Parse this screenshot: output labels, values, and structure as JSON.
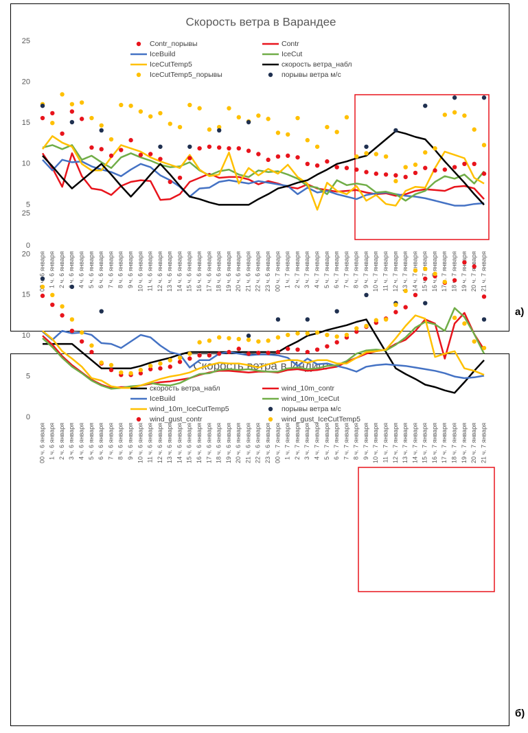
{
  "chart_data": [
    {
      "type": "line",
      "title": "Скорость ветра в Варандее",
      "panel_label": "а)",
      "categories": [
        "00 ч. 6 января",
        "1 ч. 6 января",
        "2 ч. 6 января",
        "3 ч. 6 января",
        "4 ч. 6 января",
        "5 ч. 6 января",
        "6 ч. 6 января",
        "7 ч. 6 января",
        "8 ч. 6 января",
        "9 ч. 6 января",
        "10 ч. 6 января",
        "11 ч. 6 января",
        "12 ч. 6 января",
        "13 ч. 6 января",
        "14 ч. 6 января",
        "15 ч. 6 января",
        "16 ч. 6 января",
        "17 ч. 6 января",
        "18 ч. 6 января",
        "19 ч. 6 января",
        "20 ч. 6 января",
        "21 ч. 6 января",
        "22 ч. 6 января",
        "23 ч. 6 января",
        "00 ч. 7 января",
        "1 ч. 7 января",
        "2 ч. 7 января",
        "3 ч. 7 января",
        "4 ч. 7 января",
        "5 ч. 7 января",
        "6 ч. 7 января",
        "7 ч. 7 января",
        "8 ч. 7 января",
        "9 ч. 7 января",
        "10 ч. 7 января",
        "11 ч. 7 января",
        "12 ч. 7 января",
        "13 ч. 7 января",
        "14 ч. 7 января",
        "15 ч. 7 января",
        "16 ч. 7 января",
        "17 ч. 7 января",
        "18 ч. 7 января",
        "19 ч. 7 января",
        "20 ч. 7 января",
        "21 ч. 7 января"
      ],
      "ylim": [
        0,
        25
      ],
      "yticks": [
        0,
        5,
        10,
        15,
        20,
        25
      ],
      "grid": false,
      "series": [
        {
          "name": "Contr_порывы",
          "color": "#e8141c",
          "mode": "markers",
          "values": [
            15.6,
            16.2,
            13.7,
            16.4,
            15.5,
            12,
            11.8,
            11,
            11.7,
            12.9,
            11.1,
            11.2,
            10.6,
            7.8,
            8.3,
            10.7,
            11.9,
            12.1,
            12,
            11.9,
            11.9,
            11.6,
            11.2,
            10.5,
            10.9,
            11,
            10.8,
            10,
            9.8,
            10.3,
            9.6,
            9.5,
            9.3,
            9,
            8.8,
            8.7,
            8.6,
            8.4,
            8.9,
            9.5,
            9.2,
            9.3,
            9.6,
            10,
            10,
            8.8
          ]
        },
        {
          "name": "Contr",
          "color": "#e8141c",
          "mode": "line",
          "values": [
            11.3,
            9.5,
            7.2,
            11.3,
            8.5,
            7,
            6.8,
            6.2,
            7.3,
            7.8,
            8,
            7.9,
            5.6,
            5.7,
            6.3,
            7.8,
            8.3,
            8.8,
            8.3,
            8.4,
            8.4,
            8.1,
            7.5,
            7.9,
            7.6,
            7.2,
            7,
            7.5,
            7,
            6.8,
            6.6,
            6.7,
            6.8,
            6.5,
            6.3,
            6.4,
            6.1,
            6.3,
            6.7,
            6.9,
            6.8,
            6.7,
            7.2,
            7.3,
            7,
            5.7
          ]
        },
        {
          "name": "IceBuild",
          "color": "#4472c4",
          "mode": "line",
          "values": [
            10.5,
            9.2,
            10.5,
            10.2,
            10.3,
            9.7,
            9.3,
            9,
            8.5,
            9.3,
            10,
            9.6,
            8.6,
            8,
            7.2,
            6,
            7,
            7.1,
            7.8,
            8,
            7.8,
            7.6,
            7.9,
            7.7,
            7.5,
            7.3,
            6.3,
            7.1,
            6.5,
            6.7,
            6.3,
            6,
            5.7,
            6.2,
            6.4,
            6.5,
            6.3,
            6.1,
            6,
            5.8,
            5.5,
            5.2,
            4.9,
            4.9,
            5.1,
            5.2
          ]
        },
        {
          "name": "IceCut",
          "color": "#70ad47",
          "mode": "line",
          "values": [
            12,
            12.3,
            11.8,
            12.3,
            10.5,
            11,
            10.2,
            9.5,
            10.8,
            11.3,
            10.8,
            10.4,
            9.9,
            9.6,
            9.7,
            10.2,
            9.2,
            8.6,
            9.1,
            9.3,
            8.7,
            8.4,
            9.2,
            9,
            9.1,
            8.7,
            8.2,
            7.3,
            7.1,
            6.3,
            8,
            7.4,
            7.6,
            7.4,
            6.5,
            6.6,
            6.3,
            5.5,
            6.3,
            6.7,
            7.8,
            8.5,
            8.2,
            8.7,
            7.6,
            9.1
          ]
        },
        {
          "name": "IceCutTemp5",
          "color": "#ffc000",
          "mode": "line",
          "values": [
            11.8,
            13.4,
            12.6,
            12.1,
            10,
            9.2,
            9.2,
            10.8,
            12.3,
            11.9,
            11.5,
            10.8,
            10.3,
            9.9,
            9.5,
            11.1,
            9.3,
            8.5,
            8.7,
            11.4,
            7.6,
            9.5,
            8.6,
            9.4,
            8.8,
            9.9,
            8.4,
            7.6,
            4.4,
            7.7,
            6.7,
            6.3,
            7.3,
            5.5,
            6.2,
            5.1,
            4.9,
            6.7,
            7.2,
            7.1,
            9.5,
            11.5,
            11.1,
            10.7,
            8.3,
            7.6
          ]
        },
        {
          "name": "скорость ветра_набл",
          "color": "#000000",
          "mode": "line",
          "values": [
            11,
            9.7,
            8.3,
            7,
            8,
            9,
            10,
            8.7,
            7.3,
            6,
            7.3,
            8.7,
            10,
            8.7,
            7.3,
            6,
            5.7,
            5.3,
            5,
            5,
            5,
            5,
            5.7,
            6.3,
            7,
            7.3,
            7.7,
            8,
            8.7,
            9.3,
            10,
            10.3,
            10.7,
            11,
            12,
            13,
            14,
            13.7,
            13.3,
            13,
            11.7,
            10.3,
            9,
            7.7,
            6.3,
            5
          ]
        },
        {
          "name": "IceCutTemp5_порывы",
          "color": "#ffc000",
          "mode": "markers",
          "values": [
            17.3,
            15,
            18.5,
            17.3,
            17.5,
            15.6,
            14.7,
            13,
            17.2,
            17.1,
            16.4,
            15.8,
            16.2,
            14.9,
            14.5,
            17.2,
            16.8,
            14.2,
            14.5,
            16.8,
            15.7,
            15.2,
            15.9,
            15.5,
            13.8,
            13.6,
            15.6,
            12.9,
            12.1,
            14.5,
            13.9,
            15.7,
            10.9,
            11.3,
            11.2,
            10.9,
            7.9,
            9.6,
            9.9,
            11.4,
            11.9,
            16,
            16.3,
            15.9,
            14.2,
            12.3
          ]
        },
        {
          "name": "порывы ветра м/с",
          "color": "#1f3050",
          "mode": "markers",
          "values": [
            17.1,
            null,
            null,
            15.1,
            null,
            null,
            14.1,
            null,
            null,
            null,
            null,
            null,
            12.1,
            null,
            null,
            12.1,
            null,
            null,
            14.1,
            null,
            null,
            15.1,
            null,
            null,
            null,
            null,
            null,
            null,
            null,
            null,
            null,
            null,
            null,
            12.1,
            null,
            null,
            14.1,
            null,
            null,
            17.1,
            null,
            null,
            18.1,
            null,
            null,
            18.1
          ]
        }
      ]
    },
    {
      "type": "line",
      "title": "Скорость ветра в Индиге",
      "panel_label": "б)",
      "categories": [
        "00 ч. 6 января",
        "1 ч. 6 января",
        "2 ч. 6 января",
        "3 ч. 6 января",
        "4 ч. 6 января",
        "5 ч. 6 января",
        "6 ч. 6 января",
        "7 ч. 6 января",
        "8 ч. 6 января",
        "9 ч. 6 января",
        "10 ч. 6 января",
        "11 ч. 6 января",
        "12 ч. 6 января",
        "13 ч. 6 января",
        "14 ч. 6 января",
        "15 ч. 6 января",
        "16 ч. 6 января",
        "17 ч. 6 января",
        "18 ч. 6 января",
        "19 ч. 6 января",
        "20 ч. 6 января",
        "21 ч. 6 января",
        "22 ч. 6 января",
        "23 ч. 6 января",
        "00 ч. 7 января",
        "1 ч. 7 января",
        "2 ч. 7 января",
        "3 ч. 7 января",
        "4 ч. 7 января",
        "5 ч. 7 января",
        "6 ч. 7 января",
        "7 ч. 7 января",
        "8 ч. 7 января",
        "9 ч. 7 января",
        "10 ч. 7 января",
        "11 ч. 7 января",
        "12 ч. 7 января",
        "13 ч. 7 января",
        "14 ч. 7 января",
        "15 ч. 7 января",
        "16 ч. 7 января",
        "17 ч. 7 января",
        "18 ч. 7 января",
        "19 ч. 7 января",
        "20 ч. 7 января",
        "21 ч. 7 января"
      ],
      "ylim": [
        0,
        25
      ],
      "yticks": [
        0,
        5,
        10,
        15,
        20,
        25
      ],
      "grid": false,
      "series": [
        {
          "name": "скорость ветра_набл",
          "color": "#000000",
          "mode": "line",
          "values": [
            9,
            9,
            9,
            9,
            8,
            7,
            6,
            6,
            6,
            6,
            6.3,
            6.7,
            7,
            7.3,
            7.7,
            8,
            8,
            8,
            8,
            8,
            8,
            8,
            8,
            8,
            8,
            8.7,
            9.3,
            10,
            10.3,
            10.7,
            11,
            11.3,
            11.7,
            12,
            10,
            8,
            6,
            5.3,
            4.7,
            4,
            3.7,
            3.3,
            3,
            4.3,
            5.7,
            7
          ]
        },
        {
          "name": "wind_10m_contr",
          "color": "#e8141c",
          "mode": "line",
          "values": [
            10,
            8.9,
            7.5,
            6.4,
            5.5,
            4.6,
            4,
            3.6,
            3.7,
            3.7,
            3.9,
            4.1,
            4.3,
            4.4,
            4.6,
            4.8,
            5.2,
            5.5,
            5.7,
            5.7,
            5.6,
            5.5,
            5.6,
            5.6,
            5.5,
            5.8,
            5.9,
            5.7,
            5.8,
            6,
            6.2,
            6.8,
            7.3,
            7.8,
            8.1,
            8.3,
            9,
            9.5,
            10.6,
            12,
            11.5,
            7.2,
            11.5,
            12.8,
            10.2,
            8.3
          ]
        },
        {
          "name": "IceBuild",
          "color": "#4472c4",
          "mode": "line",
          "values": [
            10.5,
            9.5,
            10.6,
            10.3,
            10.4,
            10.1,
            9.1,
            9,
            8.5,
            9.3,
            10.1,
            9.8,
            8.8,
            8,
            7.7,
            6.1,
            7,
            7,
            7.8,
            8,
            7.8,
            7.6,
            7.7,
            7.7,
            7.6,
            7.3,
            6.3,
            7.2,
            6.5,
            6.6,
            6.3,
            6,
            5.6,
            6.2,
            6.4,
            6.5,
            6.4,
            6.3,
            6.1,
            5.9,
            5.7,
            5.4,
            5,
            4.8,
            4.9,
            5.1
          ]
        },
        {
          "name": "wind_10m_IceCut",
          "color": "#70ad47",
          "mode": "line",
          "values": [
            9.7,
            8.6,
            7.3,
            6.2,
            5.4,
            4.5,
            3.9,
            3.5,
            3.6,
            3.8,
            3.9,
            4.2,
            4,
            3.9,
            4.2,
            4.8,
            5.3,
            5.4,
            5.8,
            5.9,
            5.8,
            5.9,
            5.7,
            5.6,
            5.6,
            6,
            6.1,
            5.9,
            6,
            6.3,
            6.4,
            6.9,
            7.8,
            8.2,
            8.3,
            8.2,
            8.9,
            9.8,
            11,
            11.7,
            11.4,
            10.6,
            13.4,
            12.3,
            10.2,
            7.8
          ]
        },
        {
          "name": "wind_10m_IceCutTemp5",
          "color": "#ffc000",
          "mode": "line",
          "values": [
            10.6,
            9.6,
            8.1,
            7.2,
            6.2,
            4.8,
            4.5,
            3.8,
            3.6,
            3.6,
            3.9,
            4.3,
            4.7,
            5,
            5.2,
            5.5,
            6,
            6.4,
            6.7,
            6.6,
            6.6,
            6.4,
            6.1,
            6.5,
            6.8,
            7,
            7,
            6.7,
            7,
            7,
            6.6,
            6.6,
            7.3,
            8,
            8.1,
            8.3,
            9.7,
            11.2,
            12.5,
            12.1,
            7.4,
            7.8,
            8.1,
            6,
            5.7,
            5.2
          ]
        },
        {
          "name": "порывы ветра м/с",
          "color": "#1f3050",
          "mode": "markers",
          "values": [
            17,
            null,
            null,
            16,
            null,
            null,
            13,
            null,
            null,
            null,
            null,
            null,
            null,
            null,
            null,
            null,
            null,
            null,
            null,
            null,
            null,
            10,
            null,
            null,
            12,
            null,
            null,
            12,
            null,
            null,
            13,
            null,
            null,
            15,
            null,
            null,
            14,
            null,
            null,
            14,
            null,
            null,
            null,
            null,
            null,
            12
          ]
        },
        {
          "name": "wind_gust_contr",
          "color": "#e8141c",
          "mode": "markers",
          "values": [
            14.9,
            13.8,
            12.5,
            10.6,
            9.3,
            8,
            6.6,
            5.8,
            5.2,
            5.2,
            5.4,
            5.9,
            6,
            6.2,
            6.8,
            7.2,
            7.6,
            7.6,
            7.8,
            8,
            8.4,
            7.8,
            7.9,
            7.9,
            8,
            8.4,
            8.3,
            8,
            8.3,
            8.7,
            9.2,
            9.8,
            10.5,
            11.1,
            11.6,
            12.1,
            12.9,
            13.5,
            15,
            17,
            17.3,
            16.5,
            16.8,
            19,
            18.5,
            14.8
          ]
        },
        {
          "name": "wind_gust_IceCutTemp5",
          "color": "#ffc000",
          "mode": "markers",
          "values": [
            16,
            15,
            13.6,
            12,
            10.4,
            8.8,
            6.7,
            6.4,
            5.5,
            5.4,
            5.8,
            6.3,
            6.6,
            7,
            7.3,
            7.8,
            9.2,
            9.4,
            9.8,
            9.7,
            9.6,
            9.5,
            9.3,
            9.4,
            9.8,
            10.1,
            10.3,
            10.3,
            10.4,
            10.1,
            9.9,
            10.1,
            10.9,
            11.2,
            11.9,
            12,
            13.8,
            15.5,
            18,
            18.2,
            17.6,
            16.6,
            12.2,
            11.5,
            9.3,
            8.5
          ]
        }
      ]
    }
  ]
}
